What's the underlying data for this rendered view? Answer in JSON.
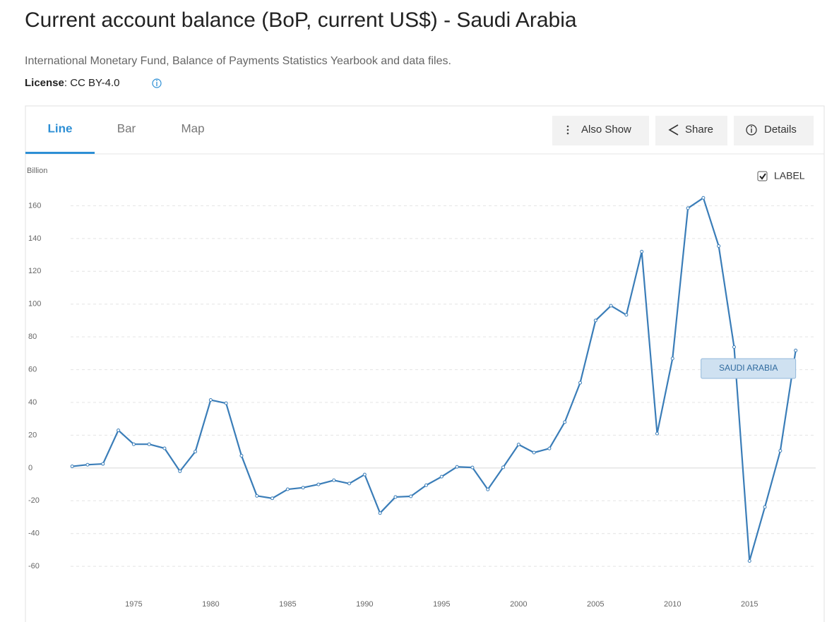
{
  "header": {
    "title": "Current account balance (BoP, current US$) - Saudi Arabia",
    "source": "International Monetary Fund, Balance of Payments Statistics Yearbook and data files.",
    "license": {
      "label": "License",
      "value": ": CC BY-4.0"
    }
  },
  "tabs": [
    "Line",
    "Bar",
    "Map"
  ],
  "buttons": [
    "Also Show",
    "Share",
    "Details"
  ],
  "chart_data": {
    "type": "line",
    "y_axis_label": "Billion",
    "label_toggle": "LABEL",
    "x": [
      1971,
      1972,
      1973,
      1974,
      1975,
      1976,
      1977,
      1978,
      1979,
      1980,
      1981,
      1982,
      1983,
      1984,
      1985,
      1986,
      1987,
      1988,
      1989,
      1990,
      1991,
      1992,
      1993,
      1994,
      1995,
      1996,
      1997,
      1998,
      1999,
      2000,
      2001,
      2002,
      2003,
      2004,
      2005,
      2006,
      2007,
      2008,
      2009,
      2010,
      2011,
      2012,
      2013,
      2014,
      2015,
      2016,
      2017,
      2018
    ],
    "series": [
      {
        "name": "SAUDI ARABIA",
        "color": "#3a7db8",
        "values": [
          1,
          2,
          2.5,
          23,
          14.5,
          14.5,
          12,
          -2,
          10,
          41.5,
          39.5,
          7.5,
          -17,
          -18.5,
          -13,
          -12,
          -10,
          -7.5,
          -9.5,
          -4,
          -27.5,
          -17.7,
          -17.3,
          -10.5,
          -5.3,
          0.7,
          0.3,
          -13.1,
          0.4,
          14.3,
          9.4,
          11.9,
          28,
          52,
          90,
          99,
          93.4,
          132,
          21,
          66.8,
          158.5,
          164.8,
          135.4,
          73.8,
          -56.7,
          -23.8,
          10.5,
          71.7
        ]
      }
    ],
    "xlim": [
      1970.9,
      2019.3
    ],
    "xticks": [
      1975,
      1980,
      1985,
      1990,
      1995,
      2000,
      2005,
      2010,
      2015
    ],
    "ylim": [
      -72,
      180
    ],
    "yticks": [
      -60,
      -40,
      -20,
      0,
      20,
      40,
      60,
      80,
      100,
      120,
      140,
      160
    ],
    "grid": true
  }
}
